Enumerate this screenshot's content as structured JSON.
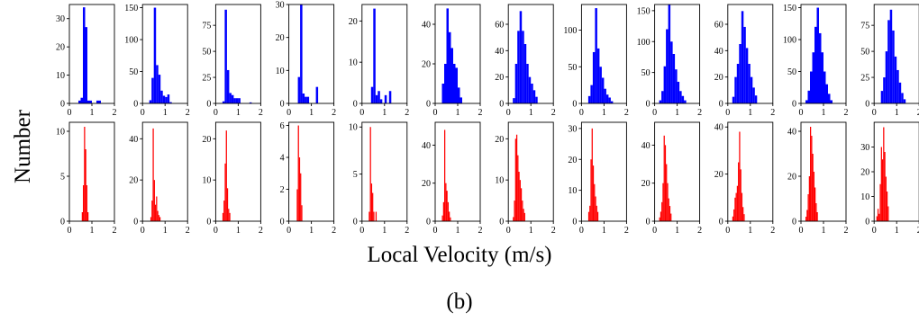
{
  "figure": {
    "ylabel": "Number",
    "xlabel": "Local Velocity (m/s)",
    "panel_label": "(b)"
  },
  "chart_data": {
    "type": "histogram-grid",
    "colors": {
      "top": "#0000ff",
      "bottom": "#ff0000"
    },
    "xlim": [
      0,
      2
    ],
    "xticks": [
      0,
      1,
      2
    ],
    "subplots": [
      {
        "row": "top",
        "col": 1,
        "ylim": [
          0,
          35
        ],
        "yticks": [
          0,
          10,
          20,
          30
        ],
        "bin_width": 0.1,
        "bins": [
          [
            0.4,
            1
          ],
          [
            0.5,
            2
          ],
          [
            0.6,
            34
          ],
          [
            0.7,
            27
          ],
          [
            0.8,
            1
          ],
          [
            0.9,
            1
          ],
          [
            1.2,
            1
          ],
          [
            1.3,
            1
          ]
        ]
      },
      {
        "row": "top",
        "col": 2,
        "ylim": [
          0,
          155
        ],
        "yticks": [
          0,
          50,
          100,
          150
        ],
        "bin_width": 0.1,
        "bins": [
          [
            0.3,
            5
          ],
          [
            0.4,
            40
          ],
          [
            0.5,
            150
          ],
          [
            0.6,
            60
          ],
          [
            0.7,
            45
          ],
          [
            0.8,
            20
          ],
          [
            0.9,
            12
          ],
          [
            1.0,
            10
          ],
          [
            1.1,
            14
          ],
          [
            1.2,
            2
          ]
        ]
      },
      {
        "row": "top",
        "col": 3,
        "ylim": [
          0,
          95
        ],
        "yticks": [
          0,
          25,
          50,
          75
        ],
        "bin_width": 0.1,
        "bins": [
          [
            0.3,
            2
          ],
          [
            0.4,
            90
          ],
          [
            0.5,
            32
          ],
          [
            0.6,
            10
          ],
          [
            0.7,
            8
          ],
          [
            0.8,
            5
          ],
          [
            0.9,
            5
          ],
          [
            1.0,
            5
          ],
          [
            1.5,
            1
          ]
        ]
      },
      {
        "row": "top",
        "col": 4,
        "ylim": [
          0,
          30
        ],
        "yticks": [
          0,
          10,
          20,
          30
        ],
        "bin_width": 0.1,
        "bins": [
          [
            0.4,
            8
          ],
          [
            0.5,
            30
          ],
          [
            0.6,
            3
          ],
          [
            0.7,
            2
          ],
          [
            0.8,
            2
          ],
          [
            1.2,
            5
          ]
        ]
      },
      {
        "row": "top",
        "col": 5,
        "ylim": [
          0,
          24
        ],
        "yticks": [
          0,
          10,
          20
        ],
        "bin_width": 0.1,
        "bins": [
          [
            0.4,
            4
          ],
          [
            0.5,
            23
          ],
          [
            0.6,
            2
          ],
          [
            0.7,
            3
          ],
          [
            0.8,
            1
          ],
          [
            1.0,
            2
          ],
          [
            1.2,
            3
          ]
        ]
      },
      {
        "row": "top",
        "col": 6,
        "ylim": [
          0,
          50
        ],
        "yticks": [
          0,
          20,
          40
        ],
        "bin_width": 0.1,
        "bins": [
          [
            0.3,
            10
          ],
          [
            0.4,
            20
          ],
          [
            0.5,
            48
          ],
          [
            0.6,
            36
          ],
          [
            0.7,
            28
          ],
          [
            0.8,
            20
          ],
          [
            0.9,
            18
          ],
          [
            1.0,
            8
          ],
          [
            1.1,
            3
          ]
        ]
      },
      {
        "row": "top",
        "col": 7,
        "ylim": [
          0,
          75
        ],
        "yticks": [
          0,
          20,
          40,
          60
        ],
        "bin_width": 0.1,
        "bins": [
          [
            0.2,
            4
          ],
          [
            0.3,
            30
          ],
          [
            0.4,
            55
          ],
          [
            0.5,
            70
          ],
          [
            0.6,
            55
          ],
          [
            0.7,
            45
          ],
          [
            0.8,
            30
          ],
          [
            0.9,
            20
          ],
          [
            1.0,
            15
          ],
          [
            1.1,
            10
          ],
          [
            1.2,
            5
          ]
        ]
      },
      {
        "row": "top",
        "col": 8,
        "ylim": [
          0,
          135
        ],
        "yticks": [
          0,
          50,
          100
        ],
        "bin_width": 0.1,
        "bins": [
          [
            0.3,
            10
          ],
          [
            0.4,
            25
          ],
          [
            0.5,
            70
          ],
          [
            0.6,
            130
          ],
          [
            0.7,
            75
          ],
          [
            0.8,
            50
          ],
          [
            0.9,
            35
          ],
          [
            1.0,
            20
          ],
          [
            1.1,
            12
          ],
          [
            1.2,
            8
          ],
          [
            1.3,
            3
          ]
        ]
      },
      {
        "row": "top",
        "col": 9,
        "ylim": [
          0,
          160
        ],
        "yticks": [
          0,
          50,
          100,
          150
        ],
        "bin_width": 0.1,
        "bins": [
          [
            0.2,
            5
          ],
          [
            0.3,
            20
          ],
          [
            0.4,
            60
          ],
          [
            0.5,
            120
          ],
          [
            0.6,
            160
          ],
          [
            0.7,
            100
          ],
          [
            0.8,
            80
          ],
          [
            0.9,
            55
          ],
          [
            1.0,
            35
          ],
          [
            1.1,
            20
          ],
          [
            1.2,
            12
          ],
          [
            1.3,
            5
          ]
        ]
      },
      {
        "row": "top",
        "col": 10,
        "ylim": [
          0,
          75
        ],
        "yticks": [
          0,
          20,
          40,
          60
        ],
        "bin_width": 0.1,
        "bins": [
          [
            0.2,
            5
          ],
          [
            0.3,
            20
          ],
          [
            0.4,
            30
          ],
          [
            0.5,
            45
          ],
          [
            0.6,
            70
          ],
          [
            0.7,
            58
          ],
          [
            0.8,
            42
          ],
          [
            0.9,
            30
          ],
          [
            1.0,
            20
          ],
          [
            1.1,
            12
          ],
          [
            1.2,
            6
          ]
        ]
      },
      {
        "row": "top",
        "col": 11,
        "ylim": [
          0,
          155
        ],
        "yticks": [
          0,
          50,
          100,
          150
        ],
        "bin_width": 0.1,
        "bins": [
          [
            0.2,
            5
          ],
          [
            0.3,
            20
          ],
          [
            0.4,
            50
          ],
          [
            0.5,
            80
          ],
          [
            0.6,
            120
          ],
          [
            0.7,
            150
          ],
          [
            0.8,
            110
          ],
          [
            0.9,
            80
          ],
          [
            1.0,
            50
          ],
          [
            1.1,
            30
          ],
          [
            1.2,
            15
          ],
          [
            1.3,
            5
          ]
        ]
      },
      {
        "row": "top",
        "col": 12,
        "ylim": [
          0,
          95
        ],
        "yticks": [
          0,
          25,
          50,
          75
        ],
        "bin_width": 0.1,
        "bins": [
          [
            0.3,
            12
          ],
          [
            0.4,
            25
          ],
          [
            0.5,
            50
          ],
          [
            0.6,
            80
          ],
          [
            0.7,
            90
          ],
          [
            0.8,
            70
          ],
          [
            0.9,
            45
          ],
          [
            1.0,
            32
          ],
          [
            1.1,
            20
          ],
          [
            1.2,
            10
          ],
          [
            1.3,
            4
          ]
        ]
      },
      {
        "row": "bottom",
        "col": 1,
        "ylim": [
          0,
          11
        ],
        "yticks": [
          0,
          5,
          10
        ],
        "bin_width": 0.05,
        "bins": [
          [
            0.55,
            1
          ],
          [
            0.6,
            4
          ],
          [
            0.65,
            10.5
          ],
          [
            0.7,
            8
          ],
          [
            0.75,
            4
          ],
          [
            0.8,
            1
          ]
        ]
      },
      {
        "row": "bottom",
        "col": 2,
        "ylim": [
          0,
          48
        ],
        "yticks": [
          0,
          20,
          40
        ],
        "bin_width": 0.05,
        "bins": [
          [
            0.35,
            2
          ],
          [
            0.4,
            10
          ],
          [
            0.45,
            45
          ],
          [
            0.5,
            20
          ],
          [
            0.55,
            8
          ],
          [
            0.6,
            12
          ],
          [
            0.65,
            5
          ],
          [
            0.7,
            3
          ],
          [
            0.75,
            2
          ]
        ]
      },
      {
        "row": "bottom",
        "col": 3,
        "ylim": [
          0,
          24
        ],
        "yticks": [
          0,
          10,
          20
        ],
        "bin_width": 0.05,
        "bins": [
          [
            0.3,
            2
          ],
          [
            0.35,
            5
          ],
          [
            0.4,
            14
          ],
          [
            0.45,
            22
          ],
          [
            0.5,
            8
          ],
          [
            0.55,
            3
          ],
          [
            0.6,
            2
          ]
        ]
      },
      {
        "row": "bottom",
        "col": 4,
        "ylim": [
          0,
          6.2
        ],
        "yticks": [
          0,
          2,
          4,
          6
        ],
        "bin_width": 0.05,
        "bins": [
          [
            0.35,
            2
          ],
          [
            0.4,
            6
          ],
          [
            0.45,
            4
          ],
          [
            0.5,
            3
          ],
          [
            0.55,
            1
          ]
        ]
      },
      {
        "row": "bottom",
        "col": 5,
        "ylim": [
          0,
          10.5
        ],
        "yticks": [
          0,
          5,
          10
        ],
        "bin_width": 0.05,
        "bins": [
          [
            0.3,
            1
          ],
          [
            0.35,
            10
          ],
          [
            0.4,
            4
          ],
          [
            0.45,
            3
          ],
          [
            0.5,
            1
          ],
          [
            0.6,
            1
          ]
        ]
      },
      {
        "row": "bottom",
        "col": 6,
        "ylim": [
          0,
          52
        ],
        "yticks": [
          0,
          20,
          40
        ],
        "bin_width": 0.05,
        "bins": [
          [
            0.3,
            3
          ],
          [
            0.35,
            10
          ],
          [
            0.4,
            48
          ],
          [
            0.45,
            20
          ],
          [
            0.5,
            16
          ],
          [
            0.55,
            10
          ],
          [
            0.6,
            5
          ],
          [
            0.65,
            2
          ]
        ]
      },
      {
        "row": "bottom",
        "col": 7,
        "ylim": [
          0,
          24
        ],
        "yticks": [
          0,
          10,
          20
        ],
        "bin_width": 0.05,
        "bins": [
          [
            0.2,
            1
          ],
          [
            0.25,
            5
          ],
          [
            0.3,
            20
          ],
          [
            0.35,
            21
          ],
          [
            0.4,
            16
          ],
          [
            0.45,
            12
          ],
          [
            0.5,
            10
          ],
          [
            0.55,
            8
          ],
          [
            0.6,
            5
          ],
          [
            0.65,
            3
          ],
          [
            0.7,
            2
          ]
        ]
      },
      {
        "row": "bottom",
        "col": 8,
        "ylim": [
          0,
          32
        ],
        "yticks": [
          0,
          10,
          20,
          30
        ],
        "bin_width": 0.05,
        "bins": [
          [
            0.3,
            3
          ],
          [
            0.35,
            5
          ],
          [
            0.4,
            20
          ],
          [
            0.45,
            30
          ],
          [
            0.5,
            18
          ],
          [
            0.55,
            12
          ],
          [
            0.6,
            8
          ],
          [
            0.65,
            5
          ],
          [
            0.7,
            3
          ]
        ]
      },
      {
        "row": "bottom",
        "col": 9,
        "ylim": [
          0,
          52
        ],
        "yticks": [
          0,
          20,
          40
        ],
        "bin_width": 0.05,
        "bins": [
          [
            0.2,
            2
          ],
          [
            0.25,
            5
          ],
          [
            0.3,
            10
          ],
          [
            0.35,
            20
          ],
          [
            0.4,
            45
          ],
          [
            0.45,
            40
          ],
          [
            0.5,
            30
          ],
          [
            0.55,
            20
          ],
          [
            0.6,
            12
          ],
          [
            0.65,
            8
          ],
          [
            0.7,
            4
          ]
        ]
      },
      {
        "row": "bottom",
        "col": 10,
        "ylim": [
          0,
          42
        ],
        "yticks": [
          0,
          20,
          40
        ],
        "bin_width": 0.05,
        "bins": [
          [
            0.2,
            2
          ],
          [
            0.25,
            5
          ],
          [
            0.3,
            10
          ],
          [
            0.35,
            12
          ],
          [
            0.4,
            15
          ],
          [
            0.45,
            25
          ],
          [
            0.5,
            38
          ],
          [
            0.55,
            22
          ],
          [
            0.6,
            12
          ],
          [
            0.65,
            6
          ],
          [
            0.7,
            3
          ]
        ]
      },
      {
        "row": "bottom",
        "col": 11,
        "ylim": [
          0,
          44
        ],
        "yticks": [
          0,
          20,
          40
        ],
        "bin_width": 0.05,
        "bins": [
          [
            0.2,
            2
          ],
          [
            0.25,
            5
          ],
          [
            0.3,
            12
          ],
          [
            0.35,
            20
          ],
          [
            0.4,
            42
          ],
          [
            0.45,
            38
          ],
          [
            0.5,
            30
          ],
          [
            0.55,
            22
          ],
          [
            0.6,
            15
          ],
          [
            0.65,
            8
          ],
          [
            0.7,
            4
          ]
        ]
      },
      {
        "row": "bottom",
        "col": 12,
        "ylim": [
          0,
          40
        ],
        "yticks": [
          0,
          10,
          20,
          30
        ],
        "bin_width": 0.05,
        "bins": [
          [
            0.1,
            2
          ],
          [
            0.15,
            5
          ],
          [
            0.2,
            3
          ],
          [
            0.25,
            15
          ],
          [
            0.3,
            30
          ],
          [
            0.35,
            25
          ],
          [
            0.4,
            38
          ],
          [
            0.45,
            28
          ],
          [
            0.5,
            18
          ],
          [
            0.55,
            12
          ],
          [
            0.6,
            6
          ]
        ]
      }
    ]
  }
}
